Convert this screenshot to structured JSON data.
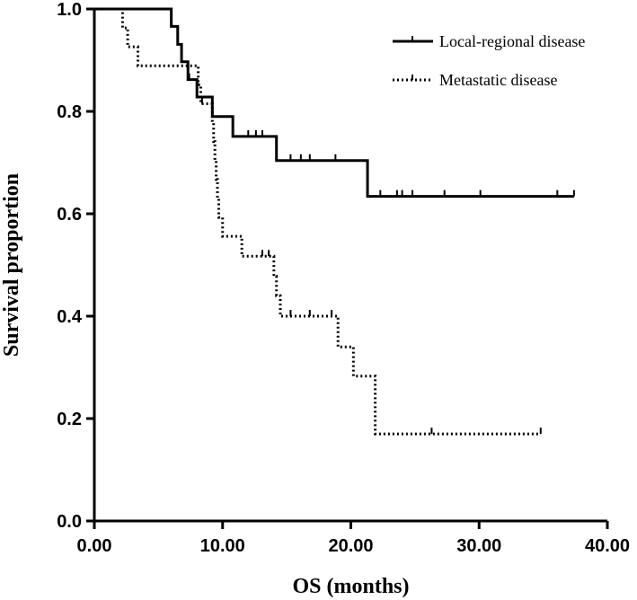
{
  "chart_data": {
    "type": "line",
    "subtype": "kaplan-meier",
    "title": "",
    "xlabel": "OS (months)",
    "ylabel": "Survival proportion",
    "xlim": [
      0,
      40
    ],
    "ylim": [
      0,
      1
    ],
    "x_ticks": [
      0,
      10,
      20,
      30,
      40
    ],
    "x_tick_labels": [
      "0.00",
      "10.00",
      "20.00",
      "30.00",
      "40.00"
    ],
    "y_ticks": [
      0,
      0.2,
      0.4,
      0.6,
      0.8,
      1.0
    ],
    "y_tick_labels": [
      "0.0",
      "0.2",
      "0.4",
      "0.6",
      "0.8",
      "1.0"
    ],
    "grid": false,
    "legend_position": "top-right",
    "series": [
      {
        "name": "Local-regional disease",
        "style": "solid",
        "color": "#000000",
        "steps": [
          [
            0,
            1.0
          ],
          [
            6.0,
            0.966
          ],
          [
            6.5,
            0.931
          ],
          [
            6.8,
            0.897
          ],
          [
            7.3,
            0.862
          ],
          [
            8.0,
            0.828
          ],
          [
            9.2,
            0.79
          ],
          [
            10.8,
            0.751
          ],
          [
            14.2,
            0.704
          ],
          [
            21.3,
            0.634
          ],
          [
            37.4,
            0.634
          ]
        ],
        "censored": [
          7.4,
          12.0,
          12.6,
          13.1,
          15.3,
          16.1,
          16.8,
          18.8,
          22.3,
          23.6,
          24.0,
          24.8,
          27.3,
          30.1,
          36.1,
          37.4
        ]
      },
      {
        "name": "Metastatic disease",
        "style": "dotted",
        "color": "#000000",
        "steps": [
          [
            0,
            1.0
          ],
          [
            2.2,
            0.963
          ],
          [
            2.6,
            0.926
          ],
          [
            3.4,
            0.889
          ],
          [
            8.1,
            0.852
          ],
          [
            8.3,
            0.815
          ],
          [
            9.2,
            0.778
          ],
          [
            9.3,
            0.741
          ],
          [
            9.4,
            0.704
          ],
          [
            9.5,
            0.667
          ],
          [
            9.6,
            0.63
          ],
          [
            9.7,
            0.593
          ],
          [
            10.0,
            0.556
          ],
          [
            11.5,
            0.517
          ],
          [
            14.0,
            0.478
          ],
          [
            14.2,
            0.44
          ],
          [
            14.5,
            0.4
          ],
          [
            19.0,
            0.34
          ],
          [
            20.2,
            0.283
          ],
          [
            21.9,
            0.17
          ],
          [
            34.8,
            0.17
          ]
        ],
        "censored": [
          8.4,
          13.1,
          13.6,
          15.3,
          16.8,
          18.5,
          26.3,
          34.8
        ]
      }
    ]
  }
}
